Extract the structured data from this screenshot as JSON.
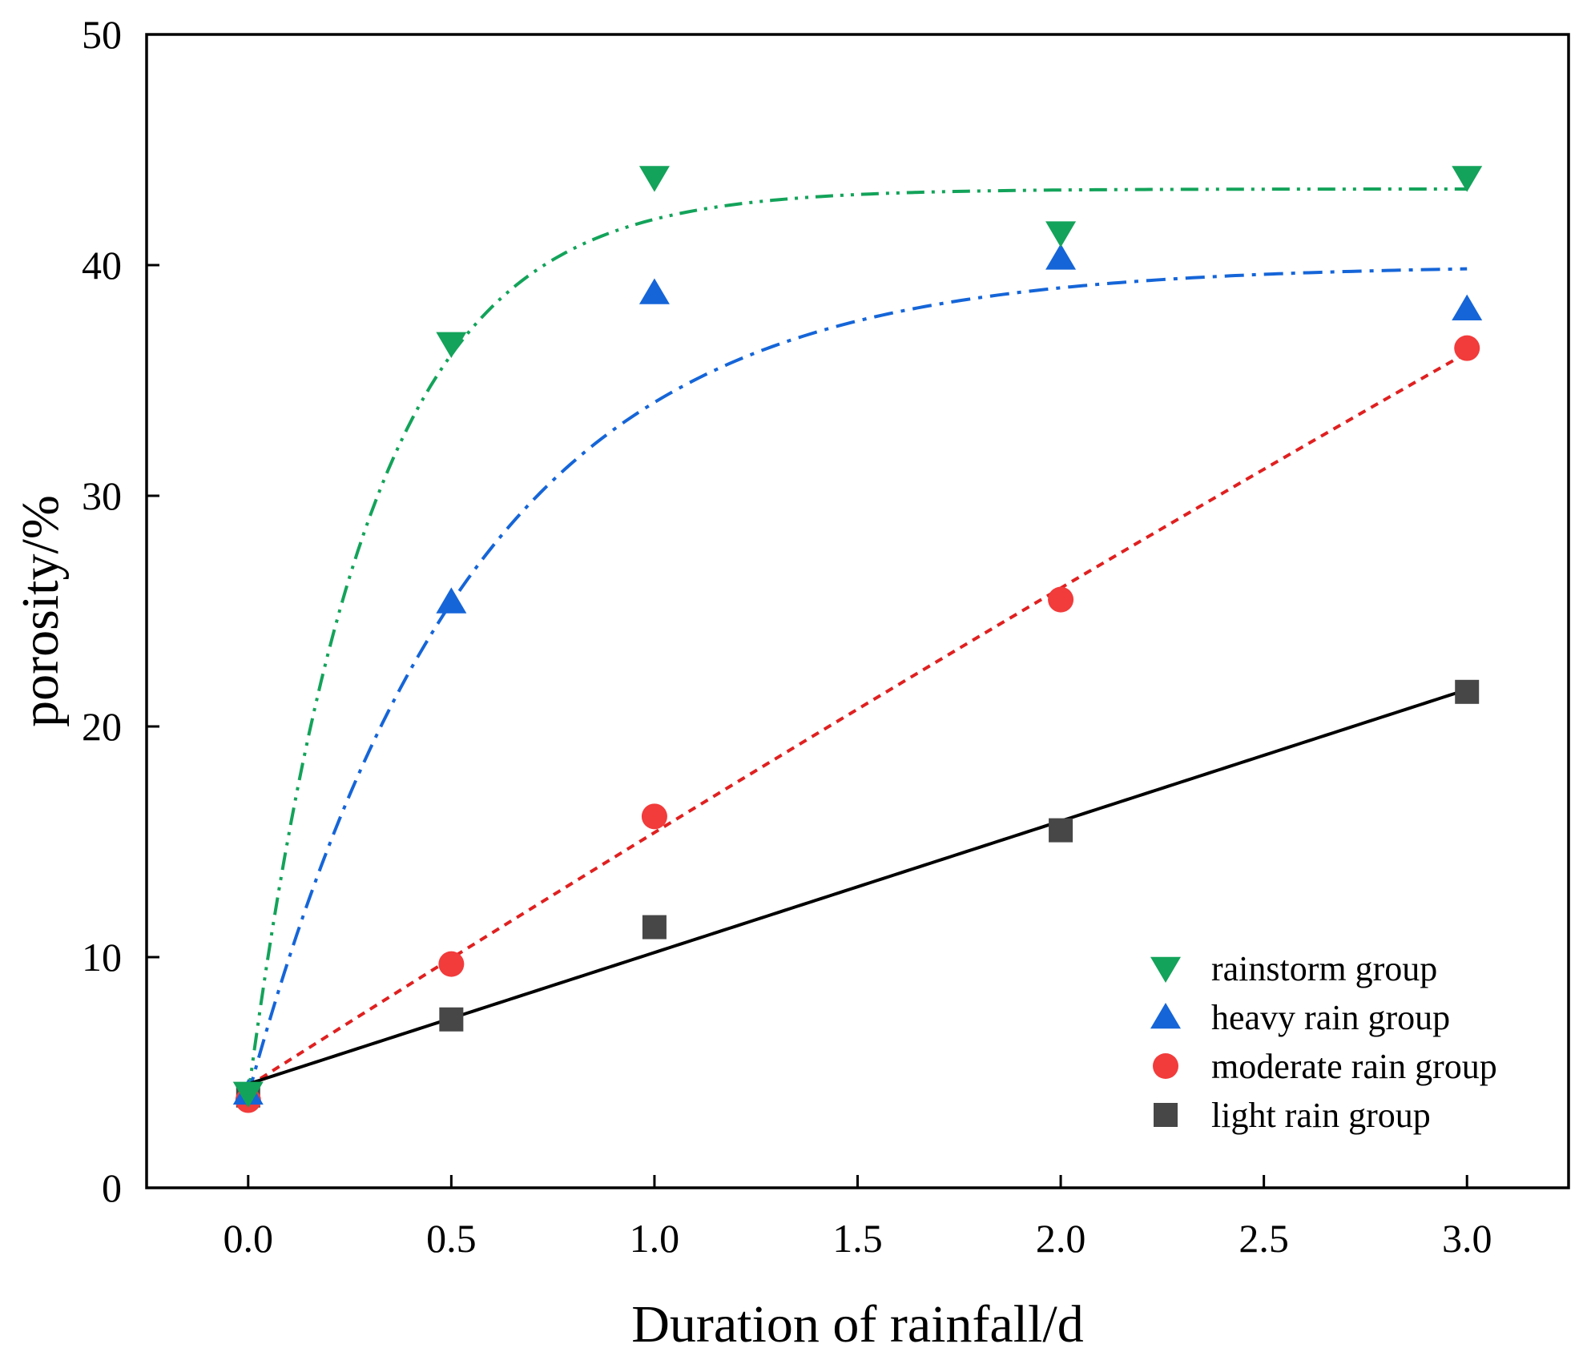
{
  "chart_data": {
    "type": "scatter",
    "title": "",
    "xlabel": "Duration of rainfall/d",
    "ylabel": "porosity/%",
    "xlim": [
      -0.25,
      3.25
    ],
    "ylim": [
      0,
      50
    ],
    "xticks": [
      0.0,
      0.5,
      1.0,
      1.5,
      2.0,
      2.5,
      3.0
    ],
    "xtick_labels": [
      "0.0",
      "0.5",
      "1.0",
      "1.5",
      "2.0",
      "2.5",
      "3.0"
    ],
    "yticks": [
      0,
      10,
      20,
      30,
      40,
      50
    ],
    "ytick_labels": [
      "0",
      "10",
      "20",
      "30",
      "40",
      "50"
    ],
    "grid": false,
    "legend_position": "bottom-right",
    "series": [
      {
        "name": "rainstorm group",
        "marker": "triangle-down",
        "color": "#13a35a",
        "line_color": "#13a35a",
        "line_style": "dash-dot-dot",
        "fit": "exponential",
        "fit_params": {
          "a": 43.3,
          "b": 4.0,
          "k": 3.4
        },
        "x": [
          0,
          0.5,
          1,
          2,
          3
        ],
        "y": [
          4.1,
          36.6,
          43.8,
          41.4,
          43.8
        ]
      },
      {
        "name": "heavy rain group",
        "marker": "triangle-up",
        "color": "#1565d8",
        "line_color": "#1565d8",
        "line_style": "dash-dot",
        "fit": "exponential",
        "fit_params": {
          "a": 40.0,
          "b": 4.0,
          "k": 1.8
        },
        "x": [
          0,
          0.5,
          1,
          2,
          3
        ],
        "y": [
          4.1,
          25.4,
          38.8,
          40.3,
          38.1
        ]
      },
      {
        "name": "moderate rain group",
        "marker": "circle",
        "color": "#f23b3b",
        "line_color": "#e02020",
        "line_style": "dotted",
        "fit": "quadratic",
        "fit_params": {
          "c0": 4.4,
          "c1": 11.2,
          "c2": -0.2
        },
        "x": [
          0,
          0.5,
          1,
          2,
          3
        ],
        "y": [
          3.8,
          9.7,
          16.1,
          25.5,
          36.4
        ]
      },
      {
        "name": "light rain group",
        "marker": "square",
        "color": "#474747",
        "line_color": "#000000",
        "line_style": "solid",
        "fit": "linear",
        "fit_params": {
          "c0": 4.5,
          "c1": 5.7
        },
        "x": [
          0,
          0.5,
          1,
          2,
          3
        ],
        "y": [
          4.0,
          7.3,
          11.3,
          15.5,
          21.5
        ]
      }
    ]
  }
}
